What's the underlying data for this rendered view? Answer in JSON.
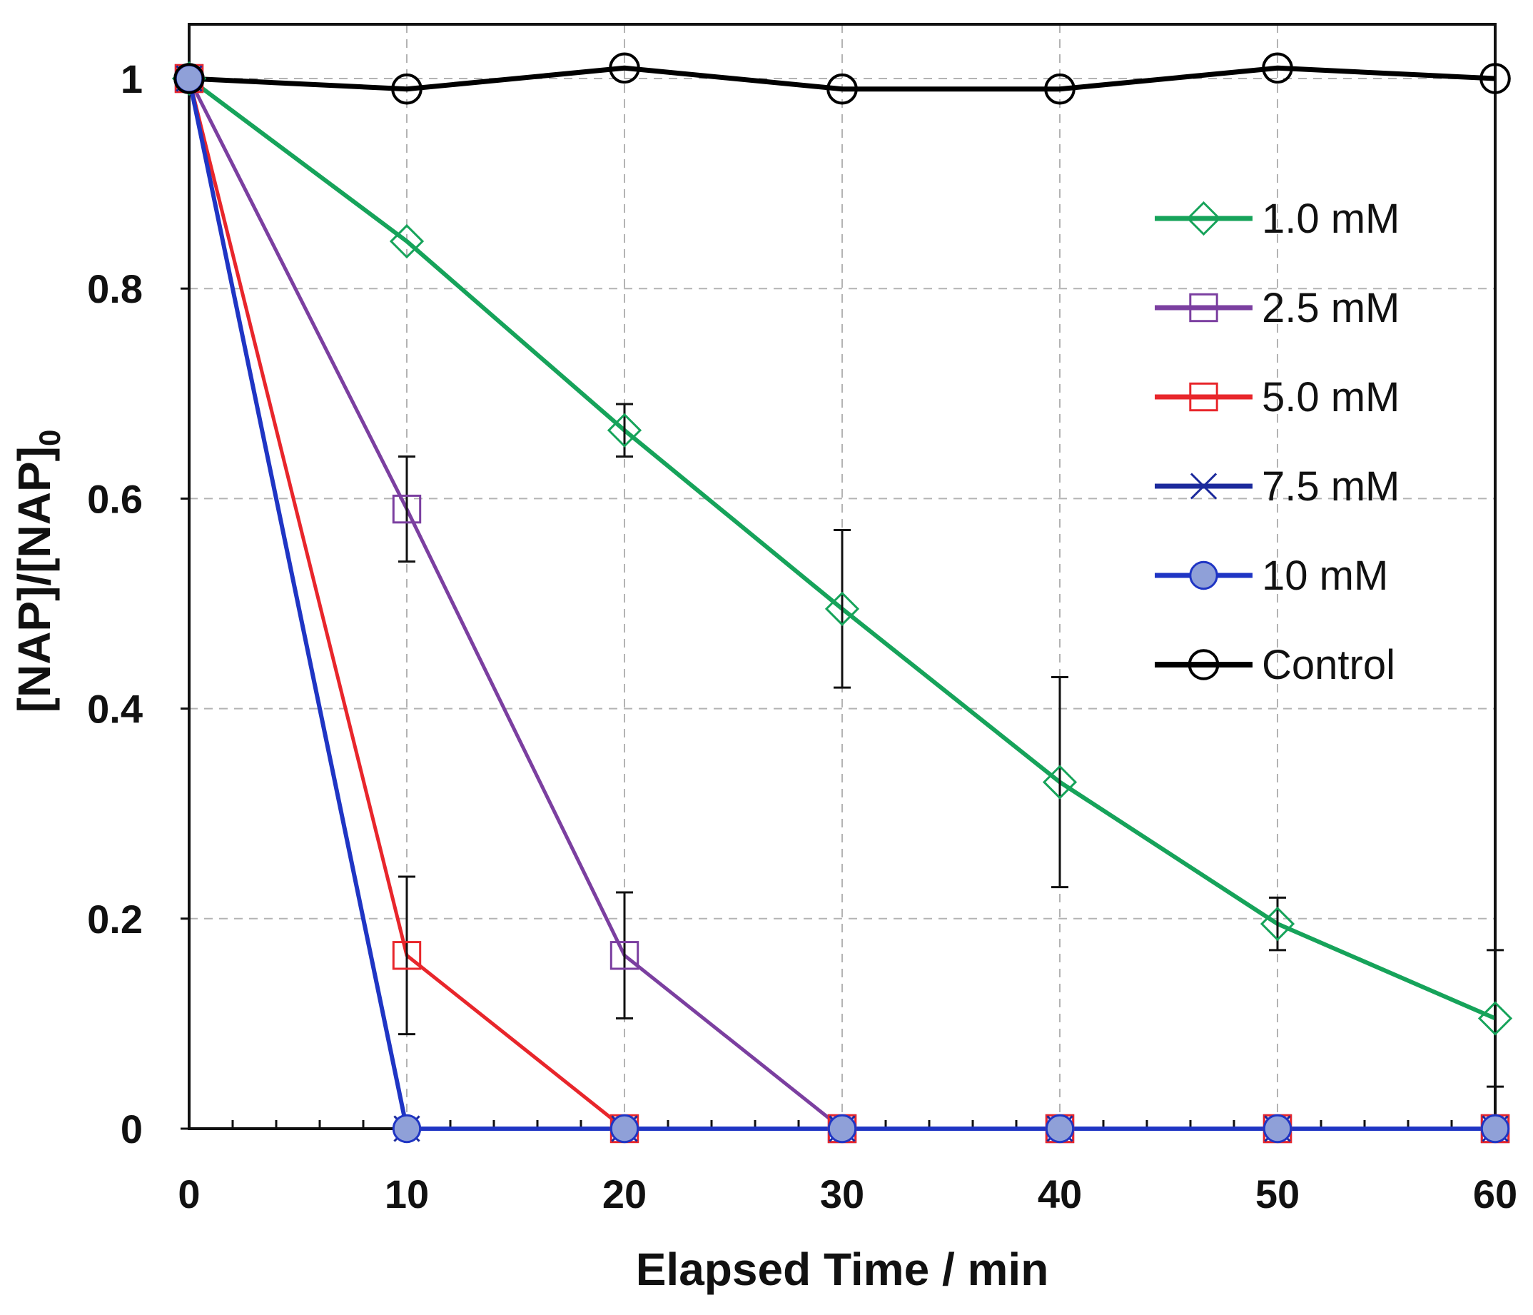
{
  "chart_data": {
    "type": "line",
    "title": "",
    "xlabel": "Elapsed Time / min",
    "ylabel": {
      "main": "[NAP]/[NAP]",
      "subscript": "0"
    },
    "xlim": [
      0,
      60
    ],
    "ylim": [
      0,
      1
    ],
    "xticks": [
      0,
      10,
      20,
      30,
      40,
      50,
      60
    ],
    "yticks": [
      0,
      0.2,
      0.4,
      0.6,
      0.8,
      1
    ],
    "ytick_labels": [
      "0",
      "0.2",
      "0.4",
      "0.6",
      "0.8",
      "1"
    ],
    "grid": true,
    "legend_position": "upper-right",
    "series": [
      {
        "name": "1.0 mM",
        "color": "#16a35a",
        "marker": "diamond",
        "x": [
          0,
          10,
          20,
          30,
          40,
          50,
          60
        ],
        "y": [
          1.0,
          0.845,
          0.665,
          0.495,
          0.33,
          0.195,
          0.105
        ],
        "errors": [
          null,
          null,
          0.025,
          0.075,
          0.1,
          0.025,
          0.065
        ]
      },
      {
        "name": "2.5 mM",
        "color": "#7b3fa0",
        "marker": "square",
        "x": [
          0,
          10,
          20,
          30,
          40,
          50,
          60
        ],
        "y": [
          1.0,
          0.59,
          0.165,
          0.0,
          0.0,
          0.0,
          0.0
        ],
        "errors": [
          null,
          0.05,
          0.06,
          null,
          null,
          null,
          null
        ]
      },
      {
        "name": "5.0 mM",
        "color": "#e8262b",
        "marker": "square",
        "x": [
          0,
          10,
          20,
          30,
          40,
          50,
          60
        ],
        "y": [
          1.0,
          0.165,
          0.0,
          0.0,
          0.0,
          0.0,
          0.0
        ],
        "errors": [
          null,
          0.075,
          null,
          null,
          null,
          null,
          null
        ]
      },
      {
        "name": "7.5 mM",
        "color": "#1c2a9c",
        "marker": "x",
        "x": [
          0,
          10,
          20,
          30,
          40,
          50,
          60
        ],
        "y": [
          1.0,
          0.0,
          0.0,
          0.0,
          0.0,
          0.0,
          0.0
        ],
        "errors": [
          null,
          null,
          null,
          null,
          null,
          null,
          null
        ]
      },
      {
        "name": "10 mM",
        "color": "#1f35c4",
        "marker": "circle-filled",
        "x": [
          0,
          10,
          20,
          30,
          40,
          50,
          60
        ],
        "y": [
          1.0,
          0.0,
          0.0,
          0.0,
          0.0,
          0.0,
          0.0
        ],
        "errors": [
          null,
          null,
          null,
          null,
          null,
          null,
          null
        ]
      },
      {
        "name": "Control",
        "color": "#000000",
        "marker": "circle",
        "x": [
          0,
          10,
          20,
          30,
          40,
          50,
          60
        ],
        "y": [
          1.0,
          0.99,
          1.01,
          0.99,
          0.99,
          1.01,
          1.0
        ],
        "errors": [
          null,
          null,
          null,
          null,
          null,
          null,
          null
        ]
      }
    ]
  }
}
